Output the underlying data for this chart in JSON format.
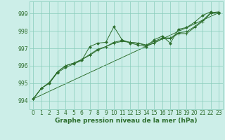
{
  "title": "Graphe pression niveau de la mer (hPa)",
  "bg_color": "#cceee8",
  "line_color": "#2d6e2d",
  "grid_color": "#88ccbb",
  "ylim": [
    993.5,
    999.7
  ],
  "xlim": [
    -0.5,
    23.5
  ],
  "yticks": [
    994,
    995,
    996,
    997,
    998,
    999
  ],
  "xticks": [
    0,
    1,
    2,
    3,
    4,
    5,
    6,
    7,
    8,
    9,
    10,
    11,
    12,
    13,
    14,
    15,
    16,
    17,
    18,
    19,
    20,
    21,
    22,
    23
  ],
  "series1": [
    994.1,
    994.7,
    995.0,
    995.6,
    995.9,
    996.1,
    996.3,
    997.1,
    997.3,
    997.35,
    998.25,
    997.5,
    997.3,
    997.2,
    997.1,
    997.5,
    997.7,
    997.3,
    998.1,
    998.2,
    998.5,
    998.9,
    999.1,
    999.0
  ],
  "series2": [
    994.1,
    994.7,
    995.0,
    995.65,
    996.0,
    996.15,
    996.35,
    996.6,
    996.9,
    997.1,
    997.3,
    997.4,
    997.35,
    997.3,
    997.15,
    997.3,
    997.55,
    997.55,
    997.85,
    997.85,
    998.2,
    998.55,
    999.0,
    999.05
  ],
  "series3": [
    994.1,
    994.7,
    995.05,
    995.65,
    996.0,
    996.15,
    996.35,
    996.65,
    996.95,
    997.1,
    997.35,
    997.45,
    997.35,
    997.3,
    997.2,
    997.4,
    997.6,
    997.6,
    997.9,
    997.95,
    998.25,
    998.6,
    999.05,
    999.1
  ],
  "trend_x": [
    0,
    23
  ],
  "trend_y": [
    994.1,
    999.05
  ],
  "tick_fontsize": 5.5,
  "xlabel_fontsize": 6.5
}
